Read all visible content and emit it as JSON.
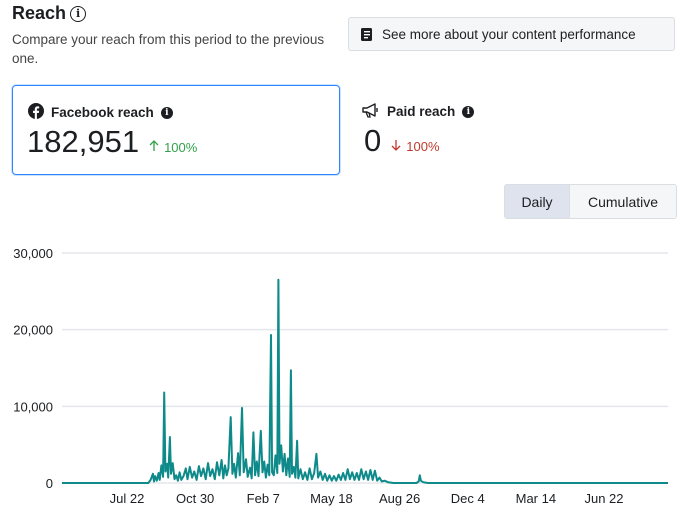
{
  "header": {
    "title": "Reach",
    "subtitle": "Compare your reach from this period to the previous one.",
    "performance_button": "See more about your content performance"
  },
  "cards": {
    "facebook": {
      "label": "Facebook reach",
      "value": "182,951",
      "delta": "100%",
      "direction": "up"
    },
    "paid": {
      "label": "Paid reach",
      "value": "0",
      "delta": "100%",
      "direction": "down"
    }
  },
  "toggle": {
    "daily": "Daily",
    "cumulative": "Cumulative",
    "selected": "Daily"
  },
  "colors": {
    "accent": "#2d88ff",
    "line": "#0e8a8a",
    "up": "#31a24c",
    "down": "#c0392b"
  },
  "chart_data": {
    "type": "line",
    "title": "",
    "xlabel": "",
    "ylabel": "",
    "ylim": [
      0,
      30000
    ],
    "yticks": [
      0,
      10000,
      20000,
      30000
    ],
    "ytick_labels": [
      "0",
      "10,000",
      "20,000",
      "30,000"
    ],
    "xtick_labels": [
      "Jul 22",
      "Oct 30",
      "Feb 7",
      "May 18",
      "Aug 26",
      "Dec 4",
      "Mar 14",
      "Jun 22"
    ],
    "xlim": [
      -44,
      1023
    ],
    "grid": true,
    "series": [
      {
        "name": "Facebook reach",
        "points": [
          [
            -44,
            0
          ],
          [
            108,
            0
          ],
          [
            112,
            400
          ],
          [
            116,
            1200
          ],
          [
            118,
            200
          ],
          [
            120,
            900
          ],
          [
            123,
            300
          ],
          [
            126,
            1300
          ],
          [
            128,
            400
          ],
          [
            131,
            2300
          ],
          [
            134,
            800
          ],
          [
            136,
            11800
          ],
          [
            138,
            1500
          ],
          [
            141,
            2500
          ],
          [
            143,
            700
          ],
          [
            146,
            6000
          ],
          [
            148,
            1200
          ],
          [
            151,
            2600
          ],
          [
            154,
            500
          ],
          [
            157,
            1000
          ],
          [
            160,
            300
          ],
          [
            163,
            1400
          ],
          [
            166,
            400
          ],
          [
            170,
            900
          ],
          [
            174,
            1900
          ],
          [
            177,
            500
          ],
          [
            181,
            2100
          ],
          [
            185,
            700
          ],
          [
            189,
            1500
          ],
          [
            193,
            400
          ],
          [
            197,
            2200
          ],
          [
            201,
            900
          ],
          [
            205,
            1900
          ],
          [
            209,
            500
          ],
          [
            213,
            2600
          ],
          [
            217,
            900
          ],
          [
            221,
            1800
          ],
          [
            225,
            500
          ],
          [
            229,
            2700
          ],
          [
            233,
            1000
          ],
          [
            237,
            3000
          ],
          [
            240,
            600
          ],
          [
            243,
            2300
          ],
          [
            246,
            1000
          ],
          [
            249,
            1900
          ],
          [
            253,
            8600
          ],
          [
            256,
            1200
          ],
          [
            259,
            2500
          ],
          [
            262,
            700
          ],
          [
            266,
            3900
          ],
          [
            269,
            1000
          ],
          [
            273,
            9800
          ],
          [
            276,
            1400
          ],
          [
            280,
            3100
          ],
          [
            283,
            800
          ],
          [
            287,
            2000
          ],
          [
            290,
            600
          ],
          [
            293,
            6600
          ],
          [
            296,
            1000
          ],
          [
            299,
            2800
          ],
          [
            302,
            900
          ],
          [
            306,
            6800
          ],
          [
            309,
            1400
          ],
          [
            312,
            2800
          ],
          [
            315,
            700
          ],
          [
            318,
            2400
          ],
          [
            321,
            1000
          ],
          [
            324,
            19300
          ],
          [
            326,
            1400
          ],
          [
            329,
            1000
          ],
          [
            332,
            3600
          ],
          [
            335,
            1300
          ],
          [
            337,
            26500
          ],
          [
            339,
            2500
          ],
          [
            342,
            4900
          ],
          [
            345,
            1500
          ],
          [
            348,
            3800
          ],
          [
            351,
            1000
          ],
          [
            354,
            3200
          ],
          [
            357,
            800
          ],
          [
            359,
            14700
          ],
          [
            361,
            1200
          ],
          [
            364,
            2100
          ],
          [
            367,
            700
          ],
          [
            370,
            5500
          ],
          [
            372,
            600
          ],
          [
            376,
            1800
          ],
          [
            380,
            500
          ],
          [
            384,
            1400
          ],
          [
            388,
            400
          ],
          [
            392,
            1900
          ],
          [
            396,
            500
          ],
          [
            400,
            1300
          ],
          [
            404,
            3800
          ],
          [
            407,
            700
          ],
          [
            411,
            1500
          ],
          [
            415,
            400
          ],
          [
            419,
            1200
          ],
          [
            423,
            300
          ],
          [
            427,
            1000
          ],
          [
            431,
            300
          ],
          [
            435,
            900
          ],
          [
            439,
            300
          ],
          [
            443,
            1100
          ],
          [
            447,
            400
          ],
          [
            451,
            1300
          ],
          [
            455,
            400
          ],
          [
            459,
            1800
          ],
          [
            463,
            500
          ],
          [
            467,
            1400
          ],
          [
            471,
            400
          ],
          [
            475,
            1300
          ],
          [
            479,
            400
          ],
          [
            483,
            1800
          ],
          [
            487,
            500
          ],
          [
            491,
            1500
          ],
          [
            495,
            400
          ],
          [
            499,
            1700
          ],
          [
            503,
            400
          ],
          [
            507,
            1600
          ],
          [
            511,
            300
          ],
          [
            515,
            700
          ],
          [
            519,
            200
          ],
          [
            524,
            300
          ],
          [
            530,
            100
          ],
          [
            540,
            0
          ],
          [
            580,
            0
          ],
          [
            584,
            200
          ],
          [
            586,
            1000
          ],
          [
            588,
            300
          ],
          [
            592,
            100
          ],
          [
            600,
            0
          ],
          [
            1023,
            0
          ]
        ]
      }
    ]
  }
}
